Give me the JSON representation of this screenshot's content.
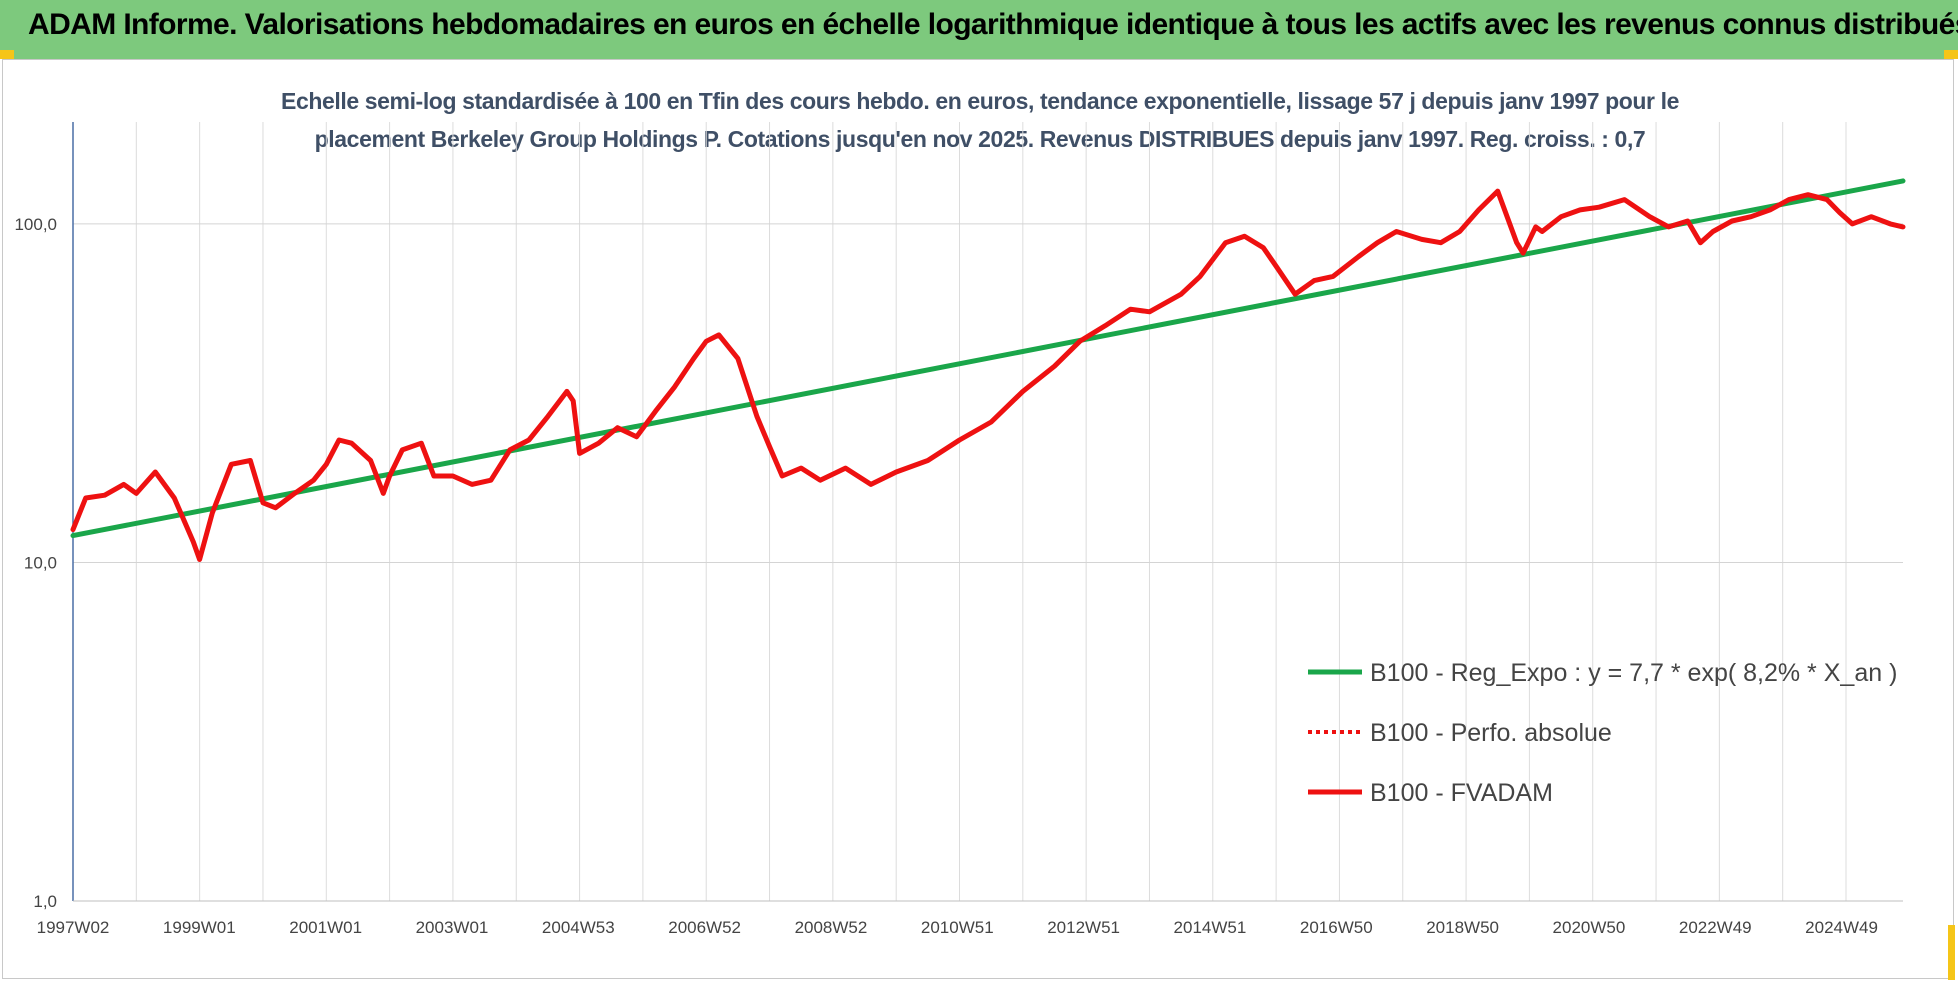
{
  "banner": {
    "title": "ADAM Informe. Valorisations hebdomadaires en euros en échelle logarithmique identique à tous les actifs avec les revenus connus distribués"
  },
  "chart_data": {
    "type": "line",
    "title_line1": "Echelle semi-log standardisée à 100 en Tfin des cours hebdo. en euros, tendance exponentielle, lissage 57 j depuis janv 1997 pour le",
    "title_line2": "placement Berkeley Group Holdings P. Cotations jusqu'en nov 2025. Revenus DISTRIBUES depuis janv 1997. Reg. croiss. : 0,7",
    "yscale": "log",
    "ylim": [
      1,
      200
    ],
    "y_ticks": [
      "1,0",
      "10,0",
      "100,0"
    ],
    "x_tick_labels": [
      "1997W02",
      "1999W01",
      "2001W01",
      "2003W01",
      "2004W53",
      "2006W52",
      "2008W52",
      "2010W51",
      "2012W51",
      "2014W51",
      "2016W50",
      "2018W50",
      "2020W50",
      "2022W49",
      "2024W49"
    ],
    "xlim": [
      1997.0,
      2025.9
    ],
    "grid": true,
    "legend_position": "bottom-right",
    "series": [
      {
        "name": "B100 - Reg_Expo : y = 7,7 * exp( 8,2% *  X_an )",
        "color": "#1aa64a",
        "style": "solid",
        "x": [
          1997.0,
          2025.9
        ],
        "y": [
          12.0,
          134.0
        ]
      },
      {
        "name": "B100 - Perfo. absolue",
        "color": "#ee1111",
        "style": "dotted",
        "x": [],
        "y": []
      },
      {
        "name": "B100 - FVADAM",
        "color": "#ee1111",
        "style": "solid",
        "x": [
          1997.0,
          1997.2,
          1997.5,
          1997.8,
          1998.0,
          1998.3,
          1998.6,
          1998.9,
          1999.0,
          1999.2,
          1999.5,
          1999.8,
          2000.0,
          2000.2,
          2000.5,
          2000.8,
          2001.0,
          2001.2,
          2001.4,
          2001.7,
          2001.9,
          2002.0,
          2002.2,
          2002.5,
          2002.7,
          2003.0,
          2003.3,
          2003.6,
          2003.9,
          2004.2,
          2004.5,
          2004.8,
          2004.9,
          2005.0,
          2005.3,
          2005.6,
          2005.9,
          2006.2,
          2006.5,
          2006.8,
          2007.0,
          2007.2,
          2007.5,
          2007.8,
          2008.0,
          2008.2,
          2008.5,
          2008.8,
          2009.2,
          2009.6,
          2010.0,
          2010.5,
          2011.0,
          2011.5,
          2012.0,
          2012.5,
          2012.9,
          2013.3,
          2013.7,
          2014.0,
          2014.5,
          2014.8,
          2015.2,
          2015.5,
          2015.8,
          2016.0,
          2016.3,
          2016.6,
          2016.9,
          2017.3,
          2017.6,
          2017.9,
          2018.3,
          2018.6,
          2018.9,
          2019.2,
          2019.5,
          2019.8,
          2019.9,
          2020.1,
          2020.2,
          2020.5,
          2020.8,
          2021.1,
          2021.5,
          2021.9,
          2022.2,
          2022.5,
          2022.7,
          2022.9,
          2023.2,
          2023.5,
          2023.8,
          2024.1,
          2024.4,
          2024.7,
          2024.9,
          2025.1,
          2025.4,
          2025.7,
          2025.9
        ],
        "y": [
          12.5,
          15.5,
          15.8,
          17.0,
          16.0,
          18.5,
          15.5,
          11.5,
          10.2,
          14.0,
          19.5,
          20.0,
          15.0,
          14.5,
          16.0,
          17.5,
          19.5,
          23.0,
          22.5,
          20.0,
          16.0,
          18.0,
          21.5,
          22.5,
          18.0,
          18.0,
          17.0,
          17.5,
          21.5,
          23.0,
          27.0,
          32.0,
          30.0,
          21.0,
          22.5,
          25.0,
          23.5,
          28.0,
          33.0,
          40.0,
          45.0,
          47.0,
          40.0,
          27.0,
          22.0,
          18.0,
          19.0,
          17.5,
          19.0,
          17.0,
          18.5,
          20.0,
          23.0,
          26.0,
          32.0,
          38.0,
          45.0,
          50.0,
          56.0,
          55.0,
          62.0,
          70.0,
          88.0,
          92.0,
          85.0,
          75.0,
          62.0,
          68.0,
          70.0,
          80.0,
          88.0,
          95.0,
          90.0,
          88.0,
          95.0,
          110.0,
          125.0,
          88.0,
          82.0,
          98.0,
          95.0,
          105.0,
          110.0,
          112.0,
          118.0,
          105.0,
          98.0,
          102.0,
          88.0,
          95.0,
          102.0,
          105.0,
          110.0,
          118.0,
          122.0,
          118.0,
          108.0,
          100.0,
          105.0,
          100.0,
          98.0
        ]
      }
    ]
  }
}
